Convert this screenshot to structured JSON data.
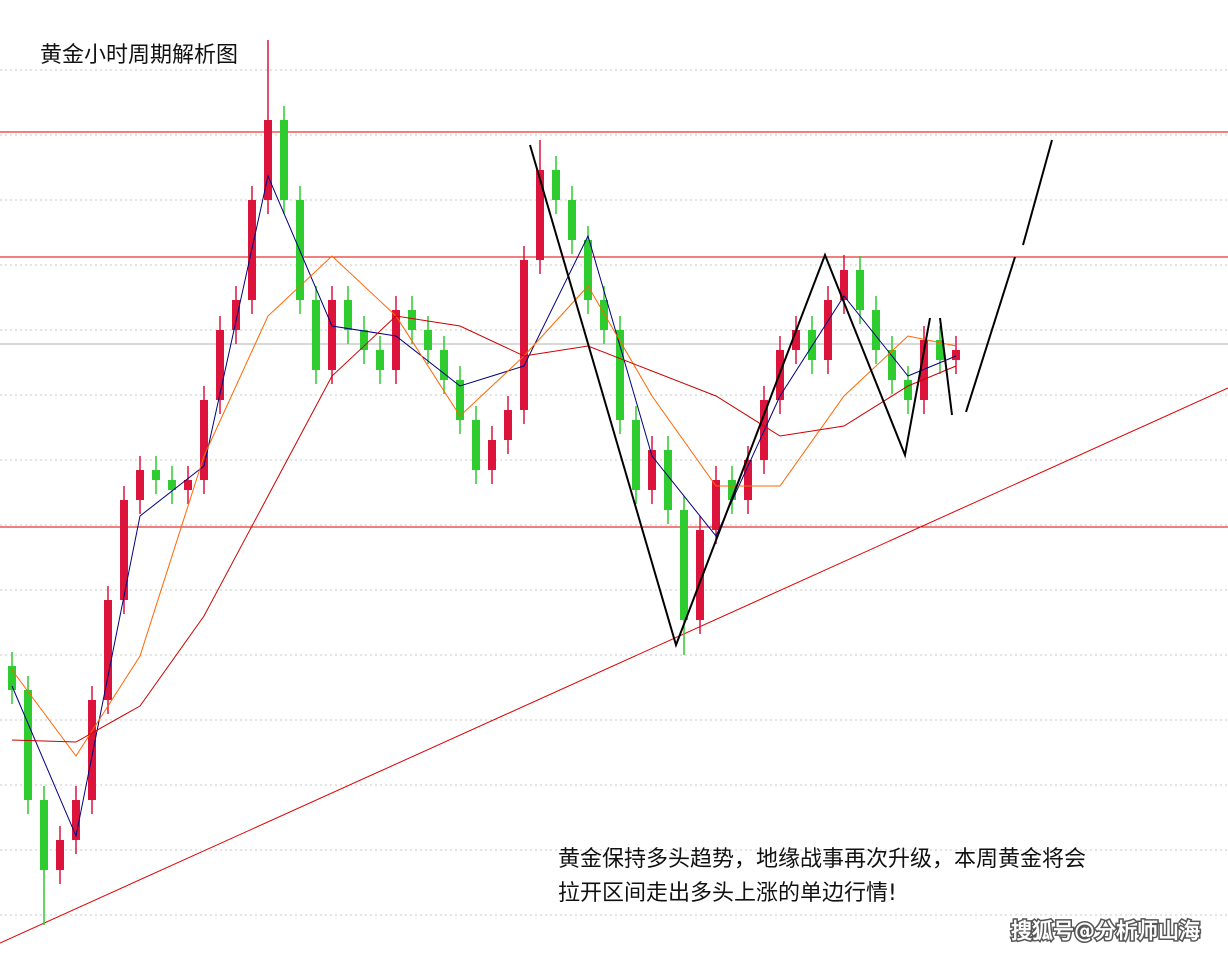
{
  "chart_data": {
    "type": "candlestick",
    "title": "黄金小时周期解析图",
    "annotation": [
      "黄金保持多头趋势，地缘战事再次升级，本周黄金将会",
      "拉开区间走出多头上涨的单边行情!"
    ],
    "watermark": "搜狐号@分析师山海",
    "xlim": [
      -0.75,
      76
    ],
    "ylim": [
      0,
      956
    ],
    "yticks": [
      41,
      106,
      171,
      236,
      301,
      366,
      431,
      496,
      561,
      626,
      691,
      756,
      821,
      886
    ],
    "grid": true,
    "up_color": "#dc143c",
    "down_color": "#2ecc2e",
    "open": [
      290,
      266,
      156,
      86,
      116,
      156,
      256,
      356,
      456,
      486,
      476,
      466,
      476,
      556,
      626,
      656,
      756,
      836,
      756,
      656,
      586,
      656,
      626,
      606,
      586,
      646,
      626,
      606,
      576,
      536,
      486,
      516,
      546,
      696,
      786,
      756,
      716,
      656,
      626,
      536,
      466,
      506,
      446,
      336,
      426,
      476,
      456,
      496,
      556,
      606,
      626,
      596,
      656,
      686,
      646,
      606,
      576,
      556,
      616,
      596
    ],
    "high": [
      304,
      280,
      170,
      130,
      170,
      270,
      370,
      470,
      500,
      500,
      490,
      490,
      570,
      640,
      670,
      770,
      916,
      850,
      770,
      670,
      670,
      670,
      640,
      620,
      660,
      660,
      640,
      620,
      590,
      550,
      530,
      560,
      710,
      816,
      800,
      770,
      730,
      670,
      640,
      550,
      520,
      520,
      460,
      440,
      490,
      490,
      510,
      570,
      620,
      640,
      640,
      670,
      701,
      700,
      660,
      620,
      590,
      630,
      630,
      620
    ],
    "low": [
      252,
      142,
      31,
      72,
      102,
      142,
      242,
      342,
      442,
      462,
      452,
      452,
      462,
      542,
      612,
      642,
      742,
      742,
      642,
      572,
      572,
      612,
      592,
      572,
      572,
      612,
      592,
      562,
      522,
      472,
      472,
      502,
      532,
      682,
      742,
      702,
      642,
      612,
      522,
      452,
      452,
      432,
      301,
      322,
      412,
      442,
      442,
      482,
      542,
      592,
      582,
      582,
      642,
      632,
      592,
      562,
      542,
      542,
      582,
      582
    ],
    "close": [
      266,
      156,
      86,
      116,
      156,
      256,
      356,
      456,
      486,
      476,
      466,
      476,
      556,
      626,
      656,
      756,
      836,
      756,
      656,
      586,
      656,
      626,
      606,
      586,
      646,
      626,
      606,
      576,
      536,
      486,
      516,
      546,
      696,
      786,
      756,
      716,
      656,
      626,
      536,
      466,
      506,
      446,
      336,
      426,
      476,
      456,
      496,
      556,
      606,
      626,
      596,
      656,
      686,
      646,
      606,
      576,
      556,
      616,
      596,
      606
    ],
    "lines": [
      {
        "color": "#000080",
        "x": [
          0,
          4,
          8,
          12,
          16,
          20,
          24,
          28,
          32,
          36,
          40,
          44,
          48,
          52,
          56,
          59
        ],
        "values": [
          270,
          120,
          440,
          490,
          780,
          630,
          620,
          570,
          590,
          720,
          500,
          420,
          560,
          660,
          580,
          600
        ]
      },
      {
        "color": "#ff6600",
        "x": [
          0,
          4,
          8,
          12,
          16,
          20,
          24,
          28,
          32,
          36,
          40,
          44,
          48,
          52,
          56,
          59
        ],
        "values": [
          286,
          200,
          300,
          500,
          640,
          700,
          640,
          540,
          600,
          670,
          560,
          470,
          470,
          560,
          620,
          610
        ]
      },
      {
        "color": "#cc0000",
        "x": [
          0,
          4,
          8,
          12,
          16,
          20,
          24,
          28,
          32,
          36,
          40,
          44,
          48,
          52,
          56,
          59
        ],
        "values": [
          216,
          214,
          250,
          340,
          460,
          580,
          640,
          630,
          600,
          610,
          585,
          560,
          520,
          530,
          570,
          590
        ]
      }
    ],
    "levels": [
      824,
      699,
      429
    ],
    "level_color": "#e00000",
    "price_line": 612,
    "price_line_color": "#b0b0b0",
    "trendline": {
      "color": "#e00000",
      "x": [
        -0.75,
        76
      ],
      "values": [
        13,
        568
      ]
    },
    "drawings": [
      {
        "color": "#000000",
        "x": [
          32.375,
          41.5,
          50.8125,
          55.8125,
          57.375
        ],
        "values": [
          811,
          311,
          701,
          501,
          638
        ]
      },
      {
        "color": "#000000",
        "x": [
          58,
          58.75
        ],
        "values": [
          638,
          541
        ]
      },
      {
        "color": "#000000",
        "x": [
          59.625,
          62.6875
        ],
        "values": [
          544,
          699
        ]
      },
      {
        "color": "#000000",
        "x": [
          63.1875,
          65
        ],
        "values": [
          711,
          816
        ]
      }
    ]
  }
}
